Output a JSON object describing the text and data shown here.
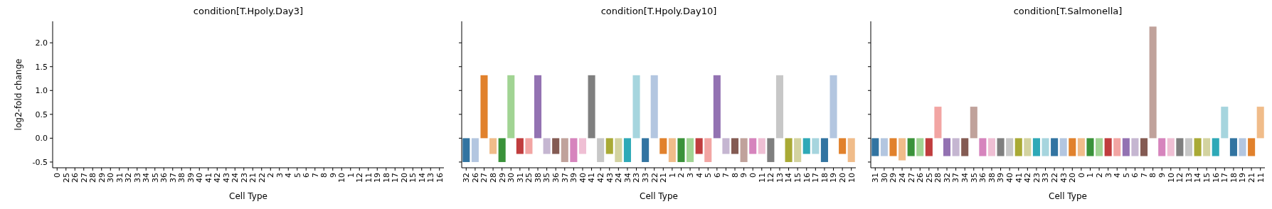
{
  "chart_data": [
    {
      "type": "bar",
      "title": "condition[T.Hpoly.Day3]",
      "xlabel": "Cell Type",
      "ylabel": "log2-fold change",
      "categories": [
        "0",
        "25",
        "26",
        "27",
        "28",
        "29",
        "30",
        "31",
        "32",
        "33",
        "34",
        "35",
        "36",
        "37",
        "38",
        "39",
        "40",
        "41",
        "42",
        "43",
        "24",
        "23",
        "21",
        "22",
        "2",
        "3",
        "4",
        "5",
        "6",
        "7",
        "8",
        "9",
        "10",
        "1",
        "12",
        "11",
        "19",
        "18",
        "17",
        "20",
        "15",
        "14",
        "13",
        "16"
      ],
      "values": [
        null,
        null,
        null,
        null,
        null,
        null,
        null,
        null,
        null,
        null,
        null,
        null,
        null,
        null,
        null,
        null,
        null,
        null,
        null,
        null,
        null,
        null,
        null,
        null,
        null,
        null,
        null,
        null,
        null,
        null,
        null,
        null,
        null,
        null,
        null,
        null,
        null,
        null,
        null,
        null,
        null,
        null,
        null,
        null
      ],
      "ylim": [
        -0.62,
        2.45
      ],
      "yticks": [
        -0.5,
        {
          "value": 0,
          "label": "0.0"
        },
        0.5,
        {
          "value": 1,
          "label": "1.0"
        },
        1.5,
        {
          "value": 2,
          "label": "2.0"
        }
      ]
    },
    {
      "type": "bar",
      "title": "condition[T.Hpoly.Day10]",
      "xlabel": "Cell Type",
      "categories": [
        "32",
        "26",
        "27",
        "28",
        "29",
        "30",
        "31",
        "25",
        "38",
        "35",
        "36",
        "37",
        "39",
        "40",
        "41",
        "42",
        "43",
        "24",
        "34",
        "23",
        "33",
        "22",
        "21",
        "1",
        "2",
        "3",
        "4",
        "5",
        "6",
        "7",
        "8",
        "9",
        "0",
        "11",
        "12",
        "13",
        "14",
        "15",
        "16",
        "17",
        "18",
        "19",
        "20",
        "10"
      ],
      "values": [
        -0.5,
        -0.5,
        1.32,
        -0.33,
        -0.5,
        1.32,
        -0.33,
        -0.33,
        1.32,
        -0.33,
        -0.33,
        -0.5,
        -0.5,
        -0.33,
        1.32,
        -0.5,
        -0.33,
        -0.5,
        -0.5,
        1.32,
        -0.5,
        1.32,
        -0.33,
        -0.5,
        -0.5,
        -0.5,
        -0.33,
        -0.5,
        1.32,
        -0.33,
        -0.33,
        -0.5,
        -0.33,
        -0.33,
        -0.5,
        1.32,
        -0.5,
        -0.5,
        -0.33,
        -0.33,
        -0.5,
        1.32,
        -0.33,
        -0.5
      ],
      "colors": [
        "#3274a1",
        "#b3c6e0",
        "#e1812c",
        "#f0bc8a",
        "#3a923a",
        "#a1d493",
        "#c03d3e",
        "#f2a5a3",
        "#9372b2",
        "#c5b6d1",
        "#845b53",
        "#c0a29b",
        "#d684bd",
        "#efbfd4",
        "#7f7f7f",
        "#c7c7c7",
        "#a9aa35",
        "#d3d3a0",
        "#2ea9b7",
        "#a6d5de",
        "#3274a1",
        "#b3c6e0",
        "#e1812c",
        "#f0bc8a",
        "#3a923a",
        "#a1d493",
        "#c03d3e",
        "#f2a5a3",
        "#9372b2",
        "#c5b6d1",
        "#845b53",
        "#c0a29b",
        "#d684bd",
        "#efbfd4",
        "#7f7f7f",
        "#c7c7c7",
        "#a9aa35",
        "#d3d3a0",
        "#2ea9b7",
        "#a6d5de",
        "#3274a1",
        "#b3c6e0",
        "#e1812c",
        "#f0bc8a"
      ],
      "ylim": [
        -0.62,
        2.45
      ],
      "yticks": [
        -0.5,
        0.0,
        0.5,
        1.0,
        1.5,
        2.0
      ],
      "tick_labels": "x"
    },
    {
      "type": "bar",
      "title": "condition[T.Salmonella]",
      "xlabel": "Cell Type",
      "categories": [
        "31",
        "30",
        "29",
        "24",
        "27",
        "26",
        "25",
        "28",
        "32",
        "37",
        "34",
        "35",
        "36",
        "38",
        "39",
        "40",
        "41",
        "42",
        "23",
        "33",
        "22",
        "43",
        "20",
        "0",
        "1",
        "2",
        "3",
        "4",
        "5",
        "6",
        "7",
        "8",
        "9",
        "10",
        "12",
        "13",
        "14",
        "15",
        "16",
        "17",
        "18",
        "19",
        "21",
        "11"
      ],
      "values": [
        -0.375,
        -0.375,
        -0.375,
        -0.465,
        -0.375,
        -0.375,
        -0.375,
        0.66,
        -0.375,
        -0.375,
        -0.375,
        0.66,
        -0.375,
        -0.375,
        -0.375,
        -0.375,
        -0.375,
        -0.375,
        -0.375,
        -0.375,
        -0.375,
        -0.375,
        -0.375,
        -0.375,
        -0.375,
        -0.375,
        -0.375,
        -0.375,
        -0.375,
        -0.375,
        -0.375,
        2.34,
        -0.375,
        -0.375,
        -0.375,
        -0.375,
        -0.375,
        -0.375,
        -0.375,
        0.66,
        -0.375,
        -0.375,
        -0.375,
        0.66
      ],
      "colors": [
        "#3274a1",
        "#b3c6e0",
        "#e1812c",
        "#f0bc8a",
        "#3a923a",
        "#a1d493",
        "#c03d3e",
        "#f2a5a3",
        "#9372b2",
        "#c5b6d1",
        "#845b53",
        "#c0a29b",
        "#d684bd",
        "#efbfd4",
        "#7f7f7f",
        "#c7c7c7",
        "#a9aa35",
        "#d3d3a0",
        "#2ea9b7",
        "#a6d5de",
        "#3274a1",
        "#b3c6e0",
        "#e1812c",
        "#f0bc8a",
        "#3a923a",
        "#a1d493",
        "#c03d3e",
        "#f2a5a3",
        "#9372b2",
        "#c5b6d1",
        "#845b53",
        "#c0a29b",
        "#d684bd",
        "#efbfd4",
        "#7f7f7f",
        "#c7c7c7",
        "#a9aa35",
        "#d3d3a0",
        "#2ea9b7",
        "#a6d5de",
        "#3274a1",
        "#b3c6e0",
        "#e1812c",
        "#f0bc8a"
      ],
      "ylim": [
        -0.62,
        2.45
      ],
      "yticks": [
        -0.5,
        0.0,
        0.5,
        1.0,
        1.5,
        2.0
      ],
      "tick_labels": "x"
    }
  ]
}
